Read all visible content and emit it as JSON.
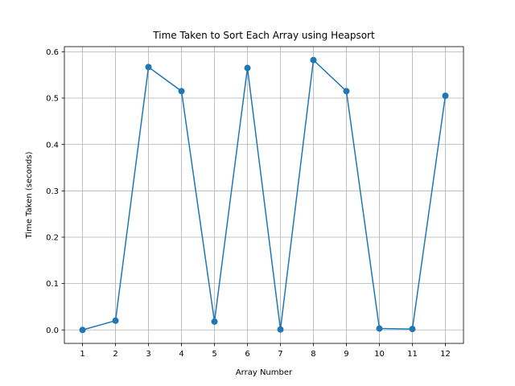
{
  "chart_data": {
    "type": "line",
    "title": "Time Taken to Sort Each Array using Heapsort",
    "xlabel": "Array Number",
    "ylabel": "Time Taken (seconds)",
    "x": [
      1,
      2,
      3,
      4,
      5,
      6,
      7,
      8,
      9,
      10,
      11,
      12
    ],
    "series": [
      {
        "values": [
          0.0,
          0.02,
          0.567,
          0.515,
          0.018,
          0.565,
          0.001,
          0.582,
          0.515,
          0.003,
          0.002,
          0.505
        ],
        "color": "#1f77b4",
        "marker": "circle"
      }
    ],
    "xlim": [
      0.45,
      12.55
    ],
    "ylim": [
      -0.029,
      0.611
    ],
    "x_ticks": [
      "1",
      "2",
      "3",
      "4",
      "5",
      "6",
      "7",
      "8",
      "9",
      "10",
      "11",
      "12"
    ],
    "y_ticks": [
      "0.0",
      "0.1",
      "0.2",
      "0.3",
      "0.4",
      "0.5",
      "0.6"
    ],
    "grid": true,
    "legend": false
  }
}
